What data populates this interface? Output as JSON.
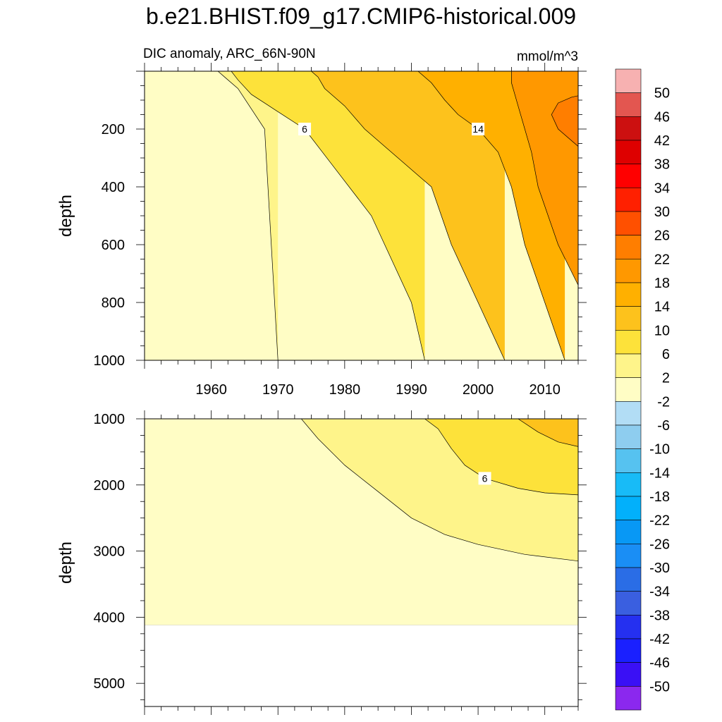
{
  "figure": {
    "title": "b.e21.BHIST.f09_g17.CMIP6-historical.009",
    "left_subtitle": "DIC anomaly, ARC_66N-90N",
    "right_subtitle": "mmol/m^3"
  },
  "chart_data": [
    {
      "type": "heatmap",
      "panel": "upper",
      "title": "DIC anomaly, ARC_66N-90N",
      "units": "mmol/m^3",
      "xlabel": "",
      "ylabel": "depth",
      "xlim": [
        1950,
        2015
      ],
      "ylim": [
        1000,
        0
      ],
      "x_ticks": [
        1960,
        1970,
        1980,
        1990,
        2000,
        2010
      ],
      "y_ticks": [
        200,
        400,
        600,
        800,
        1000
      ],
      "contour_lines": [
        {
          "level": 2,
          "points": [
            [
              1970,
              1000
            ],
            [
              1968,
              200
            ],
            [
              1964,
              60
            ],
            [
              1962,
              20
            ],
            [
              1961,
              0
            ]
          ]
        },
        {
          "level": 6,
          "label": "6",
          "points": [
            [
              1992,
              1000
            ],
            [
              1990,
              800
            ],
            [
              1986,
              600
            ],
            [
              1984,
              500
            ],
            [
              1978,
              320
            ],
            [
              1974,
              200
            ],
            [
              1970,
              140
            ],
            [
              1966,
              80
            ],
            [
              1964,
              30
            ],
            [
              1963,
              0
            ]
          ]
        },
        {
          "level": 10,
          "points": [
            [
              2004,
              1000
            ],
            [
              2000,
              800
            ],
            [
              1996,
              600
            ],
            [
              1993,
              400
            ],
            [
              1988,
              300
            ],
            [
              1983,
              200
            ],
            [
              1980,
              120
            ],
            [
              1977,
              60
            ],
            [
              1976,
              20
            ],
            [
              1975,
              0
            ]
          ]
        },
        {
          "level": 14,
          "label": "14",
          "points": [
            [
              2013,
              1000
            ],
            [
              2010,
              800
            ],
            [
              2007,
              600
            ],
            [
              2005,
              400
            ],
            [
              2003,
              280
            ],
            [
              2000,
              200
            ],
            [
              1997,
              150
            ],
            [
              1995,
              100
            ],
            [
              1993,
              40
            ],
            [
              1991,
              0
            ]
          ]
        },
        {
          "level": 18,
          "points": [
            [
              2015,
              740
            ],
            [
              2012,
              600
            ],
            [
              2009,
              400
            ],
            [
              2008,
              280
            ],
            [
              2007,
              200
            ],
            [
              2006,
              120
            ],
            [
              2005,
              40
            ],
            [
              2005,
              0
            ]
          ]
        },
        {
          "level": 22,
          "points": [
            [
              2015,
              260
            ],
            [
              2012,
              200
            ],
            [
              2011,
              150
            ],
            [
              2012,
              110
            ],
            [
              2014,
              90
            ],
            [
              2015,
              85
            ]
          ]
        }
      ]
    },
    {
      "type": "heatmap",
      "panel": "lower",
      "xlabel": "",
      "ylabel": "depth",
      "xlim": [
        1950,
        2015
      ],
      "ylim": [
        5350,
        1000
      ],
      "y_ticks": [
        1000,
        2000,
        3000,
        4000,
        5000
      ],
      "no_data_below": 4120,
      "contour_lines": [
        {
          "level": 2,
          "points": [
            [
              1973.5,
              1000
            ],
            [
              1976,
              1300
            ],
            [
              1980,
              1700
            ],
            [
              1985,
              2100
            ],
            [
              1990,
              2500
            ],
            [
              1995,
              2750
            ],
            [
              2000,
              2900
            ],
            [
              2007,
              3050
            ],
            [
              2015,
              3150
            ]
          ]
        },
        {
          "level": 6,
          "label": "6",
          "points": [
            [
              1992,
              1000
            ],
            [
              1994,
              1150
            ],
            [
              1996,
              1450
            ],
            [
              1998,
              1700
            ],
            [
              2001,
              1900
            ],
            [
              2006,
              2050
            ],
            [
              2010,
              2120
            ],
            [
              2015,
              2150
            ]
          ]
        },
        {
          "level": 10,
          "points": [
            [
              2006,
              1000
            ],
            [
              2009,
              1200
            ],
            [
              2012,
              1350
            ],
            [
              2015,
              1420
            ]
          ]
        }
      ]
    }
  ],
  "colorbar": {
    "labels": [
      "50",
      "46",
      "42",
      "38",
      "34",
      "30",
      "26",
      "22",
      "18",
      "14",
      "10",
      "6",
      "2",
      "-2",
      "-6",
      "-10",
      "-14",
      "-18",
      "-22",
      "-26",
      "-30",
      "-34",
      "-38",
      "-42",
      "-46",
      "-50"
    ],
    "colors": [
      "#f7b1b1",
      "#e35650",
      "#cc1010",
      "#de0000",
      "#ff0000",
      "#ff2000",
      "#ff5000",
      "#ff7e00",
      "#ff9800",
      "#ffb000",
      "#fdc21c",
      "#fde23a",
      "#fef48a",
      "#fffdc5",
      "#b2ddf5",
      "#8ecdef",
      "#56c2f0",
      "#18bbf7",
      "#02b0fb",
      "#0898f5",
      "#1a8ef5",
      "#2a6de6",
      "#3a5fe0",
      "#2530f0",
      "#1a20ff",
      "#3a10f5",
      "#8b28ee"
    ]
  }
}
